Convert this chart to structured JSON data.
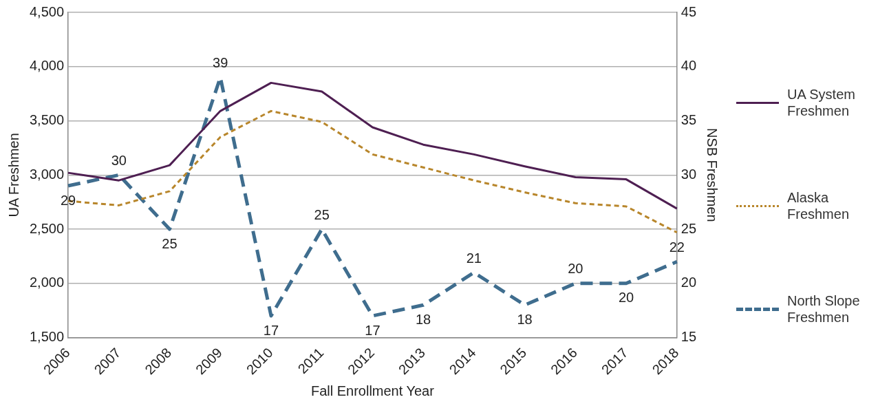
{
  "chart_data": {
    "type": "line",
    "xlabel": "Fall Enrollment Year",
    "ylabel": "UA Freshmen",
    "y2label": "NSB Freshmen",
    "categories": [
      "2006",
      "2007",
      "2008",
      "2009",
      "2010",
      "2011",
      "2012",
      "2013",
      "2014",
      "2015",
      "2016",
      "2017",
      "2018"
    ],
    "series": [
      {
        "name": "UA System Freshmen",
        "color": "#4e1f52",
        "line_style": "solid",
        "values": [
          3020,
          2950,
          3090,
          3590,
          3850,
          3770,
          3440,
          3280,
          3190,
          3080,
          2980,
          2960,
          2690
        ]
      },
      {
        "name": "Alaska Freshmen",
        "color": "#b8862b",
        "line_style": "dotted",
        "values": [
          2760,
          2720,
          2850,
          3350,
          3590,
          3490,
          3190,
          3070,
          2950,
          2840,
          2740,
          2710,
          2470
        ]
      },
      {
        "name": "North Slope Freshmen",
        "color": "#3f6d8e",
        "line_style": "dashed",
        "axis": "y2",
        "values": [
          29,
          30,
          25,
          39,
          17,
          25,
          17,
          18,
          21,
          18,
          20,
          20,
          22
        ],
        "value_labels": [
          "29",
          "30",
          "25",
          "39",
          "17",
          "25",
          "17",
          "18",
          "21",
          "18",
          "20",
          "20",
          "22"
        ]
      }
    ],
    "ylim": [
      1500,
      4500
    ],
    "yticks": [
      {
        "value": 1500,
        "label": "1,500"
      },
      {
        "value": 2000,
        "label": "2,000"
      },
      {
        "value": 2500,
        "label": "2,500"
      },
      {
        "value": 3000,
        "label": "3,000"
      },
      {
        "value": 3500,
        "label": "3,500"
      },
      {
        "value": 4000,
        "label": "4,000"
      },
      {
        "value": 4500,
        "label": "4,500"
      }
    ],
    "y2lim": [
      15,
      45
    ],
    "y2ticks": [
      15,
      20,
      25,
      30,
      35,
      40,
      45
    ],
    "grid": "y",
    "legend": "right",
    "marker": "none"
  }
}
